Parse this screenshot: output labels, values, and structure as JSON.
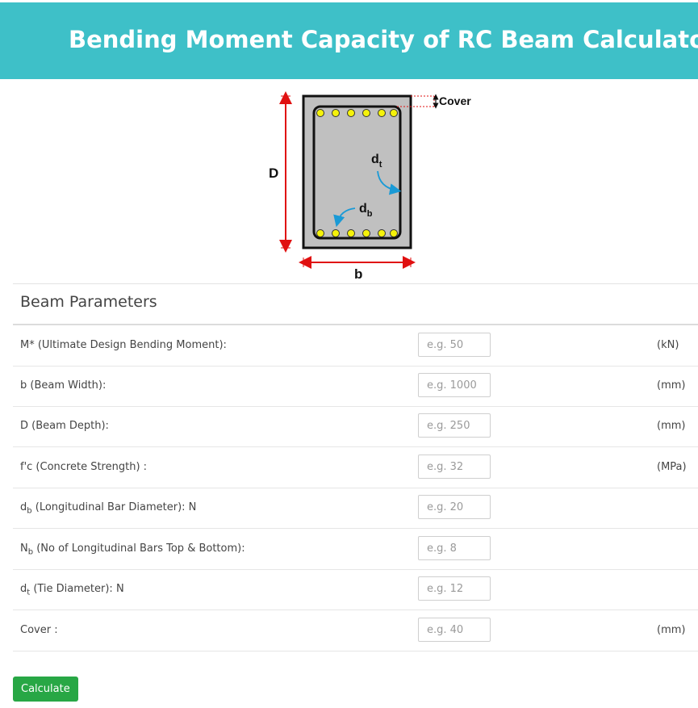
{
  "header": {
    "title": "Bending Moment Capacity of RC Beam Calculator",
    "background": "#3ec0c8"
  },
  "diagram": {
    "cover_label": "Cover",
    "depth_label": "D",
    "width_label": "b",
    "dt_main": "d",
    "dt_sub": "t",
    "db_main": "d",
    "db_sub": "b"
  },
  "section": {
    "title": "Beam Parameters"
  },
  "fields": [
    {
      "label_main": "M* (Ultimate Design Bending Moment):",
      "label_sub": "",
      "label_after": "",
      "placeholder": "e.g. 50",
      "unit": "(kN)"
    },
    {
      "label_main": "b (Beam Width):",
      "label_sub": "",
      "label_after": "",
      "placeholder": "e.g. 1000",
      "unit": "(mm)"
    },
    {
      "label_main": "D (Beam Depth):",
      "label_sub": "",
      "label_after": "",
      "placeholder": "e.g. 250",
      "unit": "(mm)"
    },
    {
      "label_main": "f'c (Concrete Strength) :",
      "label_sub": "",
      "label_after": "",
      "placeholder": "e.g. 32",
      "unit": "(MPa)"
    },
    {
      "label_main": "d",
      "label_sub": "b",
      "label_after": " (Longitudinal Bar Diameter): N",
      "placeholder": "e.g. 20",
      "unit": ""
    },
    {
      "label_main": "N",
      "label_sub": "b",
      "label_after": " (No of Longitudinal Bars Top & Bottom):",
      "placeholder": "e.g. 8",
      "unit": ""
    },
    {
      "label_main": "d",
      "label_sub": "t",
      "label_after": " (Tie Diameter): N",
      "placeholder": "e.g. 12",
      "unit": ""
    },
    {
      "label_main": "Cover :",
      "label_sub": "",
      "label_after": "",
      "placeholder": "e.g. 40",
      "unit": "(mm)"
    }
  ],
  "actions": {
    "calculate_label": "Calculate",
    "button_color": "#28a745"
  }
}
